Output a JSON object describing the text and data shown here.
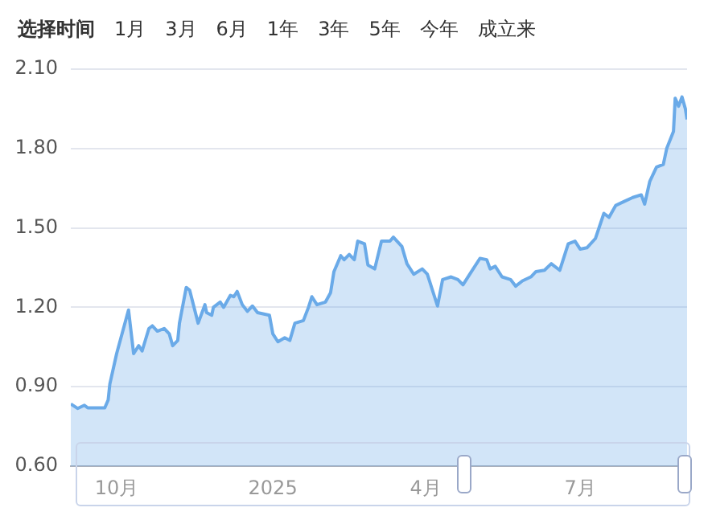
{
  "chart_data": {
    "type": "area",
    "color": "#6aaae8",
    "annotations": [
      "选择时间",
      "1月",
      "3月",
      "6月",
      "1年",
      "3年",
      "5年",
      "今年",
      "成立来"
    ],
    "x": [
      "2024-09-04",
      "2024-09-08",
      "2024-09-12",
      "2024-09-14",
      "2024-09-24",
      "2024-09-26",
      "2024-09-27",
      "2024-10-01",
      "2024-10-08",
      "2024-10-11",
      "2024-10-14",
      "2024-10-16",
      "2024-10-20",
      "2024-10-22",
      "2024-10-25",
      "2024-10-29",
      "2024-11-01",
      "2024-11-03",
      "2024-11-06",
      "2024-11-07",
      "2024-11-11",
      "2024-11-13",
      "2024-11-18",
      "2024-11-22",
      "2024-11-23",
      "2024-11-26",
      "2024-11-27",
      "2024-12-01",
      "2024-12-03",
      "2024-12-07",
      "2024-12-09",
      "2024-12-11",
      "2024-12-14",
      "2024-12-17",
      "2024-12-20",
      "2024-12-23",
      "2024-12-30",
      "2025-01-01",
      "2025-01-04",
      "2025-01-08",
      "2025-01-11",
      "2025-01-14",
      "2025-01-19",
      "2025-01-22",
      "2025-01-24",
      "2025-01-27",
      "2025-02-01",
      "2025-02-04",
      "2025-02-06",
      "2025-02-10",
      "2025-02-12",
      "2025-02-15",
      "2025-02-18",
      "2025-02-20",
      "2025-02-24",
      "2025-02-26",
      "2025-03-02",
      "2025-03-06",
      "2025-03-11",
      "2025-03-13",
      "2025-03-18",
      "2025-03-21",
      "2025-03-25",
      "2025-03-30",
      "2025-04-02",
      "2025-04-08",
      "2025-04-11",
      "2025-04-16",
      "2025-04-20",
      "2025-04-23",
      "2025-04-28",
      "2025-05-03",
      "2025-05-07",
      "2025-05-09",
      "2025-05-12",
      "2025-05-16",
      "2025-05-21",
      "2025-05-24",
      "2025-05-28",
      "2025-06-02",
      "2025-06-05",
      "2025-06-10",
      "2025-06-14",
      "2025-06-19",
      "2025-06-24",
      "2025-06-28",
      "2025-07-01",
      "2025-07-05",
      "2025-07-10",
      "2025-07-15",
      "2025-07-18",
      "2025-07-22",
      "2025-07-27",
      "2025-08-01",
      "2025-08-06",
      "2025-08-08",
      "2025-08-11",
      "2025-08-15",
      "2025-08-19",
      "2025-08-21",
      "2025-08-25",
      "2025-08-26",
      "2025-08-28",
      "2025-08-30",
      "2025-09-01",
      "2025-09-02"
    ],
    "values": [
      0.835,
      0.818,
      0.83,
      0.82,
      0.82,
      0.85,
      0.91,
      1.025,
      1.19,
      1.025,
      1.055,
      1.035,
      1.12,
      1.13,
      1.11,
      1.12,
      1.1,
      1.055,
      1.075,
      1.14,
      1.275,
      1.265,
      1.14,
      1.21,
      1.18,
      1.17,
      1.2,
      1.22,
      1.2,
      1.245,
      1.24,
      1.26,
      1.21,
      1.185,
      1.205,
      1.18,
      1.17,
      1.1,
      1.07,
      1.085,
      1.075,
      1.14,
      1.15,
      1.2,
      1.24,
      1.21,
      1.22,
      1.255,
      1.335,
      1.395,
      1.38,
      1.4,
      1.38,
      1.45,
      1.44,
      1.36,
      1.345,
      1.45,
      1.45,
      1.465,
      1.43,
      1.365,
      1.325,
      1.345,
      1.325,
      1.205,
      1.305,
      1.315,
      1.305,
      1.285,
      1.335,
      1.385,
      1.38,
      1.345,
      1.355,
      1.315,
      1.305,
      1.28,
      1.3,
      1.315,
      1.335,
      1.34,
      1.365,
      1.34,
      1.44,
      1.45,
      1.42,
      1.425,
      1.46,
      1.555,
      1.54,
      1.585,
      1.6,
      1.615,
      1.625,
      1.59,
      1.675,
      1.73,
      1.74,
      1.8,
      1.865,
      1.99,
      1.96,
      1.995,
      1.95,
      1.91
    ],
    "xlim": [
      "2024-09-04",
      "2025-09-02"
    ],
    "xticks": [
      {
        "value": "2024-10-01",
        "label": "10月"
      },
      {
        "value": "2025-01-01",
        "label": "2025"
      },
      {
        "value": "2025-04-01",
        "label": "4月"
      },
      {
        "value": "2025-07-01",
        "label": "7月"
      }
    ],
    "ylim": [
      0.6,
      2.1
    ],
    "yticks": [
      {
        "value": 0.6,
        "label": "0.60"
      },
      {
        "value": 0.9,
        "label": "0.90"
      },
      {
        "value": 1.2,
        "label": "1.20"
      },
      {
        "value": 1.5,
        "label": "1.50"
      },
      {
        "value": 1.8,
        "label": "1.80"
      },
      {
        "value": 2.1,
        "label": "2.10"
      }
    ],
    "grid": "y",
    "marker": "none"
  }
}
